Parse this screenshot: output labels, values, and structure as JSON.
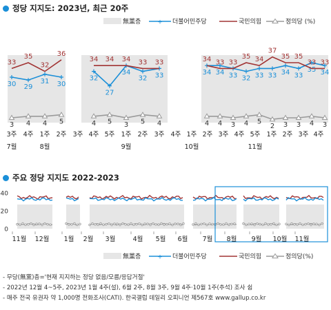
{
  "title1": "정당 지지도: 2023년, 최근 20주",
  "title2": "주요 정당 지지도 2022-2023",
  "colors": {
    "dem": "#1a8fd8",
    "ppp": "#a13333",
    "jp": "#9a9a9a",
    "none": "#e6e6e6",
    "box": "#1a8fd8"
  },
  "legend": {
    "none": "無黨층",
    "dem": "더불어민주당",
    "ppp": "국민의힘",
    "jp": "정의당 (%)"
  },
  "legend2": {
    "none": "無黨층",
    "dem": "더불어민주당",
    "ppp": "국민의힘",
    "jp": "정의당(%)"
  },
  "chart_data": [
    {
      "type": "line",
      "title": "정당 지지도: 2023년, 최근 20주",
      "groups": [
        {
          "weeks": [
            "3주",
            "4주",
            "1주",
            "2주"
          ],
          "months": [
            {
              "label": "7월",
              "at": 0
            },
            {
              "label": "8월",
              "at": 2
            }
          ]
        },
        {
          "weeks": [
            "3주",
            "4주",
            "5주",
            "1주",
            "2주",
            "3주",
            "4주"
          ],
          "months": [
            {
              "label": "9월",
              "at": 3
            }
          ]
        },
        {
          "weeks": [
            "1주",
            "2주",
            "3주",
            "4주",
            "5주",
            "1주",
            "2주",
            "3주",
            "4주",
            "5주"
          ],
          "months": [
            {
              "label": "10월",
              "at": 0
            },
            {
              "label": "11월",
              "at": 6
            }
          ]
        }
      ],
      "series": [
        {
          "name": "더불어민주당",
          "values": [
            30,
            29,
            31,
            30,
            32,
            27,
            34,
            32,
            33,
            34,
            34,
            33,
            32,
            33,
            33,
            34,
            33,
            35,
            34
          ]
        },
        {
          "name": "국민의힘",
          "values": [
            33,
            35,
            32,
            36,
            34,
            34,
            34,
            33,
            33,
            34,
            33,
            33,
            35,
            34,
            37,
            35,
            35,
            33,
            33
          ]
        },
        {
          "name": "정의당",
          "values": [
            3,
            4,
            4,
            5,
            4,
            5,
            3,
            5,
            4,
            4,
            4,
            3,
            4,
            5,
            2,
            3,
            3,
            4,
            3
          ]
        }
      ],
      "series_index_by_group": [
        [
          0,
          1,
          2,
          3
        ],
        [
          null,
          0,
          1,
          2,
          null,
          3,
          4
        ],
        [
          null,
          0,
          1,
          2,
          3,
          4,
          5,
          6,
          7,
          8
        ]
      ],
      "none_values": [
        null,
        null,
        null,
        null
      ]
    },
    {
      "type": "line",
      "title": "주요 정당 지지도 2022-2023",
      "yticks": [
        0,
        20,
        40
      ],
      "ylim": [
        0,
        40
      ],
      "months": [
        "11월",
        "12월",
        "1월",
        "2월",
        "3월",
        "4월",
        "5월",
        "6월",
        "7월",
        "8월",
        "9월",
        "10월",
        "11월"
      ],
      "series": [
        {
          "name": "더불어민주당",
          "level": 33
        },
        {
          "name": "국민의힘",
          "level": 35
        },
        {
          "name": "정의당",
          "level": 5
        },
        {
          "name": "無黨층",
          "level": 27
        }
      ]
    }
  ],
  "notes": [
    "- 무당(無黨)층='현재 지지하는 정당 없음/모름/응답거절'",
    "- 2022년 12월 4~5주, 2023년 1월 4주(설), 6월 2주, 8월 3주, 9월 4주·10월 1주(추석) 조사 쉼",
    "- 매주 전국 유권자 약 1,000명 전화조사(CATI). 한국갤럽 데일리 오피니언 제567호 www.gallup.co.kr"
  ]
}
